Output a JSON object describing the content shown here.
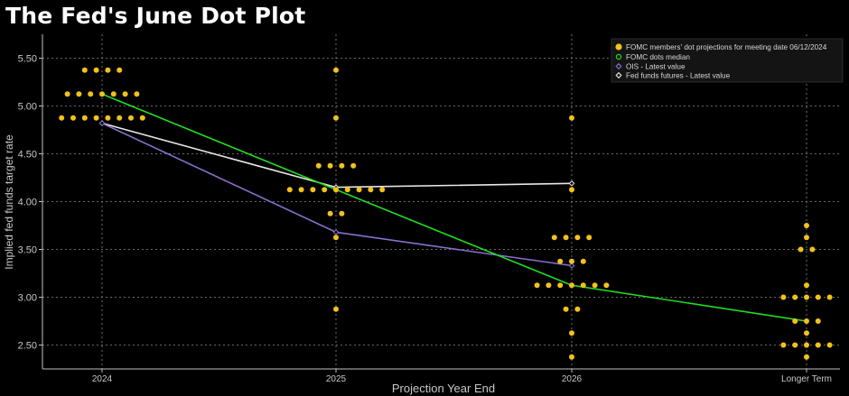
{
  "chart_data": {
    "type": "scatter",
    "title": "The Fed's June Dot Plot",
    "xlabel": "Projection Year End",
    "ylabel": "Implied fed funds target rate",
    "categories": [
      "2024",
      "2025",
      "2026",
      "Longer Term"
    ],
    "yticks": [
      "2.50",
      "3.00",
      "3.50",
      "4.00",
      "4.50",
      "5.00",
      "5.50"
    ],
    "ylim": [
      2.25,
      5.75
    ],
    "grid": true,
    "legend_position": "top-right",
    "colors": {
      "background": "#000000",
      "dots": "#f2c21b",
      "median": "#22dd22",
      "ois": "#8b6fd0",
      "futures": "#e8e8e8",
      "grid": "#8a8a8a",
      "axis_text": "#c8c8c8"
    },
    "series": [
      {
        "name": "FOMC members' dot projections for meeting date 06/12/2024",
        "kind": "dots",
        "points": [
          {
            "x": "2024",
            "y": 5.375,
            "count": 4
          },
          {
            "x": "2024",
            "y": 5.125,
            "count": 7
          },
          {
            "x": "2024",
            "y": 4.875,
            "count": 8
          },
          {
            "x": "2025",
            "y": 5.375,
            "count": 1
          },
          {
            "x": "2025",
            "y": 4.875,
            "count": 1
          },
          {
            "x": "2025",
            "y": 4.375,
            "count": 4
          },
          {
            "x": "2025",
            "y": 4.125,
            "count": 9
          },
          {
            "x": "2025",
            "y": 3.875,
            "count": 2
          },
          {
            "x": "2025",
            "y": 3.625,
            "count": 1
          },
          {
            "x": "2025",
            "y": 2.875,
            "count": 1
          },
          {
            "x": "2026",
            "y": 4.875,
            "count": 1
          },
          {
            "x": "2026",
            "y": 4.125,
            "count": 1
          },
          {
            "x": "2026",
            "y": 3.625,
            "count": 4
          },
          {
            "x": "2026",
            "y": 3.375,
            "count": 3
          },
          {
            "x": "2026",
            "y": 3.125,
            "count": 7
          },
          {
            "x": "2026",
            "y": 2.875,
            "count": 2
          },
          {
            "x": "2026",
            "y": 2.625,
            "count": 1
          },
          {
            "x": "2026",
            "y": 2.375,
            "count": 1
          },
          {
            "x": "Longer Term",
            "y": 3.75,
            "count": 1
          },
          {
            "x": "Longer Term",
            "y": 3.625,
            "count": 1
          },
          {
            "x": "Longer Term",
            "y": 3.5,
            "count": 2
          },
          {
            "x": "Longer Term",
            "y": 3.125,
            "count": 1
          },
          {
            "x": "Longer Term",
            "y": 3.0,
            "count": 5
          },
          {
            "x": "Longer Term",
            "y": 2.75,
            "count": 3
          },
          {
            "x": "Longer Term",
            "y": 2.625,
            "count": 1
          },
          {
            "x": "Longer Term",
            "y": 2.5,
            "count": 5
          },
          {
            "x": "Longer Term",
            "y": 2.375,
            "count": 1
          }
        ]
      },
      {
        "name": "FOMC dots median",
        "kind": "line",
        "x": [
          "2024",
          "2025",
          "2026",
          "Longer Term"
        ],
        "values": [
          5.125,
          4.125,
          3.125,
          2.75
        ]
      },
      {
        "name": "OIS - Latest value",
        "kind": "line",
        "x": [
          "2024",
          "2025",
          "2026"
        ],
        "values": [
          4.82,
          3.68,
          3.33
        ]
      },
      {
        "name": "Fed funds futures - Latest value",
        "kind": "line",
        "x": [
          "2024",
          "2025",
          "2026"
        ],
        "values": [
          4.82,
          4.15,
          4.19
        ]
      }
    ]
  }
}
